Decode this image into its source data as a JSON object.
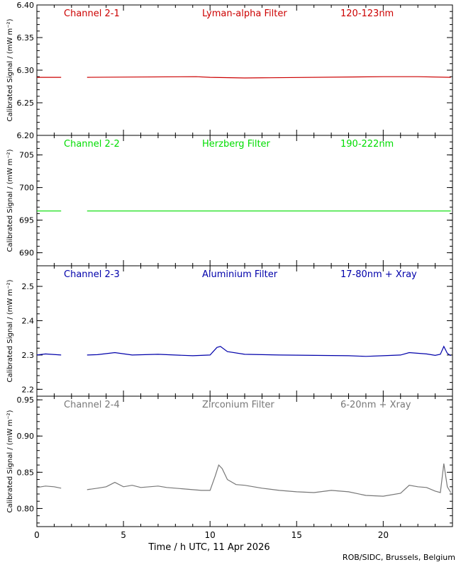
{
  "footer": "ROB/SIDC, Brussels, Belgium",
  "chart_data": [
    {
      "type": "line",
      "channel": "Channel 2-1",
      "filter": "Lyman-alpha Filter",
      "band": "120-123nm",
      "ylabel": "Calibrated Signal / (mW m⁻²)",
      "color": "#cc0000",
      "xlim": [
        0,
        24
      ],
      "ylim": [
        6.2,
        6.4
      ],
      "yticks": [
        6.2,
        6.25,
        6.3,
        6.35,
        6.4
      ],
      "ytick_labels": [
        "6.20",
        "6.25",
        "6.30",
        "6.35",
        "6.40"
      ],
      "gap": [
        1.4,
        2.9
      ],
      "series": [
        {
          "x": [
            0,
            1.4,
            2.9,
            9.2,
            10.0,
            12.0,
            20.0,
            22.0,
            23.9
          ],
          "y": [
            6.289,
            6.289,
            6.289,
            6.29,
            6.289,
            6.288,
            6.29,
            6.29,
            6.289
          ]
        }
      ]
    },
    {
      "type": "line",
      "channel": "Channel 2-2",
      "filter": "Herzberg Filter",
      "band": "190-222nm",
      "ylabel": "Calibrated Signal / (mW m⁻²)",
      "color": "#00dd00",
      "xlim": [
        0,
        24
      ],
      "ylim": [
        688,
        708
      ],
      "yticks": [
        690,
        695,
        700,
        705
      ],
      "ytick_labels": [
        "690",
        "695",
        "700",
        "705"
      ],
      "gap": [
        1.4,
        2.9
      ],
      "series": [
        {
          "x": [
            0,
            1.4,
            2.9,
            12.0,
            23.9
          ],
          "y": [
            696.4,
            696.4,
            696.4,
            696.4,
            696.4
          ]
        }
      ]
    },
    {
      "type": "line",
      "channel": "Channel 2-3",
      "filter": "Aluminium Filter",
      "band": "17-80nm + Xray",
      "ylabel": "Calibrated Signal / (mW m⁻²)",
      "color": "#0000aa",
      "xlim": [
        0,
        24
      ],
      "ylim": [
        2.18,
        2.56
      ],
      "yticks": [
        2.2,
        2.3,
        2.4,
        2.5
      ],
      "ytick_labels": [
        "2.2",
        "2.3",
        "2.4",
        "2.5"
      ],
      "gap": [
        1.4,
        2.9
      ],
      "series": [
        {
          "x": [
            0,
            0.5,
            1.4,
            2.9,
            3.5,
            4.5,
            5.5,
            7.0,
            9.0,
            10.0,
            10.4,
            10.6,
            11.0,
            12.0,
            14.0,
            16.0,
            18.0,
            19.0,
            20.0,
            21.0,
            21.5,
            22.5,
            23.0,
            23.3,
            23.5,
            23.7,
            23.9
          ],
          "y": [
            2.3,
            2.303,
            2.3,
            2.3,
            2.301,
            2.307,
            2.3,
            2.302,
            2.298,
            2.3,
            2.322,
            2.325,
            2.31,
            2.302,
            2.3,
            2.299,
            2.298,
            2.296,
            2.298,
            2.3,
            2.307,
            2.303,
            2.299,
            2.302,
            2.325,
            2.305,
            2.298
          ]
        }
      ]
    },
    {
      "type": "line",
      "channel": "Channel 2-4",
      "filter": "Zirconium Filter",
      "band": "6-20nm + Xray",
      "ylabel": "Calibrated Signal / (mW m⁻²)",
      "color": "#777777",
      "xlim": [
        0,
        24
      ],
      "xticks": [
        0,
        5,
        10,
        15,
        20
      ],
      "xtick_labels": [
        "0",
        "5",
        "10",
        "15",
        "20"
      ],
      "xlabel": "Time / h UTC, 11 Apr 2026",
      "ylim": [
        0.775,
        0.955
      ],
      "yticks": [
        0.8,
        0.85,
        0.9,
        0.95
      ],
      "ytick_labels": [
        "0.80",
        "0.85",
        "0.90",
        "0.95"
      ],
      "gap": [
        1.4,
        2.9
      ],
      "series": [
        {
          "x": [
            0,
            0.5,
            1.0,
            1.4,
            2.9,
            3.5,
            4.0,
            4.5,
            5.0,
            5.5,
            6.0,
            7.0,
            7.5,
            8.0,
            9.0,
            9.5,
            10.0,
            10.3,
            10.5,
            10.7,
            11.0,
            11.5,
            12.0,
            13.0,
            14.0,
            15.0,
            16.0,
            17.0,
            18.0,
            19.0,
            20.0,
            21.0,
            21.5,
            22.0,
            22.5,
            23.0,
            23.3,
            23.5,
            23.7,
            23.9
          ],
          "y": [
            0.829,
            0.831,
            0.83,
            0.828,
            0.826,
            0.828,
            0.83,
            0.836,
            0.83,
            0.832,
            0.829,
            0.831,
            0.829,
            0.828,
            0.826,
            0.825,
            0.825,
            0.845,
            0.86,
            0.855,
            0.84,
            0.833,
            0.832,
            0.828,
            0.825,
            0.823,
            0.822,
            0.825,
            0.823,
            0.818,
            0.817,
            0.821,
            0.832,
            0.83,
            0.829,
            0.824,
            0.822,
            0.862,
            0.83,
            0.822
          ]
        }
      ]
    }
  ]
}
